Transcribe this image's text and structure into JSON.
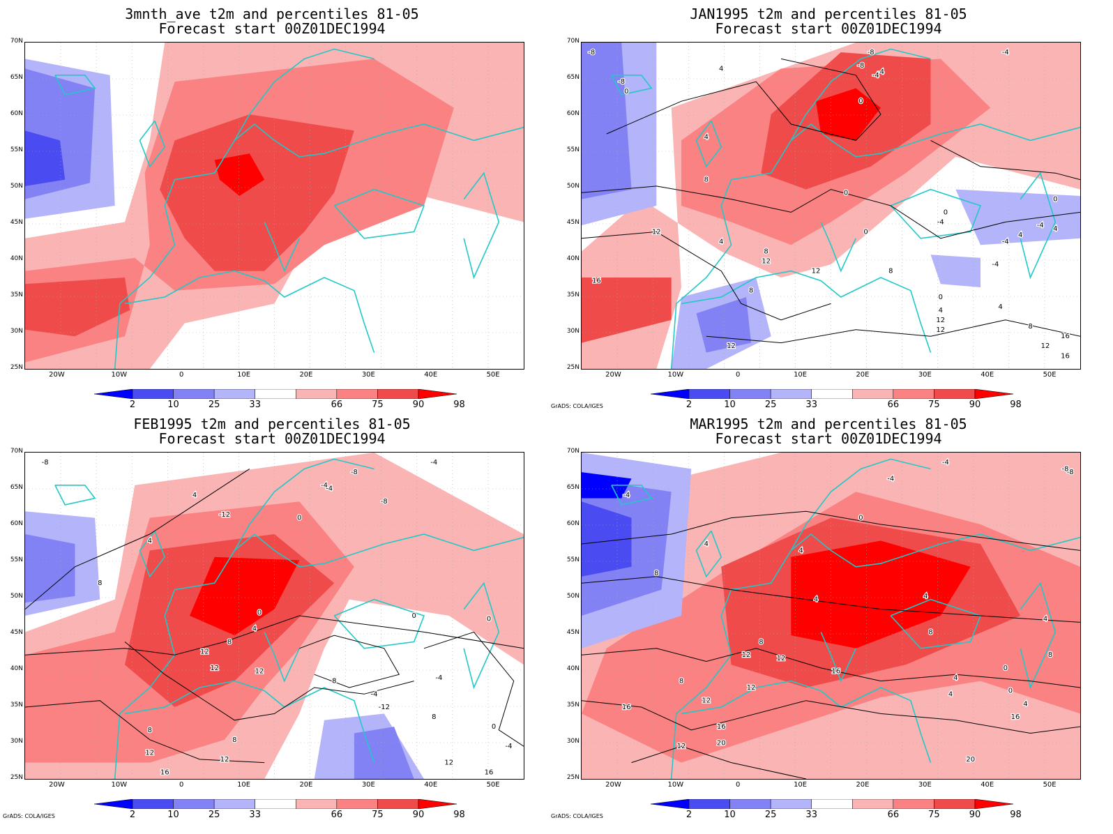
{
  "colors": {
    "p2": "#0000ff",
    "p10": "#4b4bf2",
    "p25": "#8282f5",
    "p33": "#b4b4fa",
    "p66": "#fab4b4",
    "p75": "#fa8282",
    "p90": "#f04b4b",
    "p98": "#ff0000",
    "coast": "#20c8c8",
    "contour": "#000000"
  },
  "colorbar": {
    "labels": [
      "2",
      "10",
      "25",
      "33",
      "66",
      "75",
      "90",
      "98"
    ]
  },
  "credit": "GrADS: COLA/IGES",
  "latitudes": [
    "70N",
    "65N",
    "60N",
    "55N",
    "50N",
    "45N",
    "40N",
    "35N",
    "30N",
    "25N"
  ],
  "longitudes": [
    "20W",
    "10W",
    "0",
    "10E",
    "20E",
    "30E",
    "40E",
    "50E"
  ],
  "panels": [
    {
      "title_line1": "3mnth_ave t2m and percentiles 81-05",
      "title_line2": "Forecast start 00Z01DEC1994",
      "contour_labels": []
    },
    {
      "title_line1": "JAN1995 t2m and percentiles 81-05",
      "title_line2": "Forecast start 00Z01DEC1994",
      "contour_labels": [
        "-8",
        "-8",
        "-8",
        "-4",
        "-4",
        "-8",
        "-4",
        "0",
        "0",
        "4",
        "4",
        "8",
        "0",
        "-4",
        "-4",
        "0",
        "4",
        "12",
        "4",
        "8",
        "12",
        "12",
        "-4",
        "16",
        "8",
        "4",
        "8",
        "0",
        "-4",
        "0",
        "12",
        "4",
        "12",
        "8",
        "16",
        "12",
        "16",
        "12",
        "0",
        "4"
      ]
    },
    {
      "title_line1": "FEB1995 t2m and percentiles 81-05",
      "title_line2": "Forecast start 00Z01DEC1994",
      "contour_labels": [
        "-8",
        "-4",
        "-8",
        "-4",
        "-12",
        "4",
        "-4",
        "0",
        "-8",
        "4",
        "8",
        "0",
        "0",
        "4",
        "8",
        "12",
        "12",
        "12",
        "-4",
        "8",
        "0",
        "-4",
        "-12",
        "8",
        "0",
        "8",
        "8",
        "12",
        "12",
        "16",
        "12",
        "16",
        "-4",
        "0"
      ]
    },
    {
      "title_line1": "MAR1995 t2m and percentiles 81-05",
      "title_line2": "Forecast start 00Z01DEC1994",
      "contour_labels": [
        "-4",
        "-4",
        "-8",
        "-4",
        "0",
        "4",
        "4",
        "8",
        "0",
        "4",
        "4",
        "4",
        "8",
        "12",
        "12",
        "12",
        "16",
        "12",
        "16",
        "20",
        "20",
        "16",
        "8",
        "8",
        "0",
        "4",
        "4",
        "16",
        "-8",
        "8",
        "4",
        "12"
      ]
    }
  ]
}
